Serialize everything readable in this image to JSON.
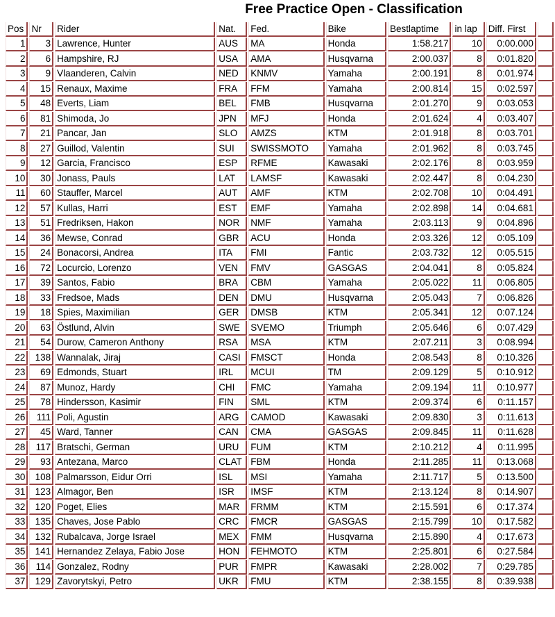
{
  "title": "Free Practice Open - Classification",
  "columns": [
    "Pos",
    "Nr",
    "Rider",
    "Nat.",
    "Fed.",
    "Bike",
    "Bestlaptime",
    "in lap",
    "Diff. First",
    ""
  ],
  "rows": [
    [
      "1",
      "3",
      "Lawrence, Hunter",
      "AUS",
      "MA",
      "Honda",
      "1:58.217",
      "10",
      "0:00.000"
    ],
    [
      "2",
      "6",
      "Hampshire, RJ",
      "USA",
      "AMA",
      "Husqvarna",
      "2:00.037",
      "8",
      "0:01.820"
    ],
    [
      "3",
      "9",
      "Vlaanderen, Calvin",
      "NED",
      "KNMV",
      "Yamaha",
      "2:00.191",
      "8",
      "0:01.974"
    ],
    [
      "4",
      "15",
      "Renaux, Maxime",
      "FRA",
      "FFM",
      "Yamaha",
      "2:00.814",
      "15",
      "0:02.597"
    ],
    [
      "5",
      "48",
      "Everts, Liam",
      "BEL",
      "FMB",
      "Husqvarna",
      "2:01.270",
      "9",
      "0:03.053"
    ],
    [
      "6",
      "81",
      "Shimoda, Jo",
      "JPN",
      "MFJ",
      "Honda",
      "2:01.624",
      "4",
      "0:03.407"
    ],
    [
      "7",
      "21",
      "Pancar, Jan",
      "SLO",
      "AMZS",
      "KTM",
      "2:01.918",
      "8",
      "0:03.701"
    ],
    [
      "8",
      "27",
      "Guillod, Valentin",
      "SUI",
      "SWISSMOTO",
      "Yamaha",
      "2:01.962",
      "8",
      "0:03.745"
    ],
    [
      "9",
      "12",
      "Garcia, Francisco",
      "ESP",
      "RFME",
      "Kawasaki",
      "2:02.176",
      "8",
      "0:03.959"
    ],
    [
      "10",
      "30",
      "Jonass, Pauls",
      "LAT",
      "LAMSF",
      "Kawasaki",
      "2:02.447",
      "8",
      "0:04.230"
    ],
    [
      "11",
      "60",
      "Stauffer, Marcel",
      "AUT",
      "AMF",
      "KTM",
      "2:02.708",
      "10",
      "0:04.491"
    ],
    [
      "12",
      "57",
      "Kullas, Harri",
      "EST",
      "EMF",
      "Yamaha",
      "2:02.898",
      "14",
      "0:04.681"
    ],
    [
      "13",
      "51",
      "Fredriksen, Hakon",
      "NOR",
      "NMF",
      "Yamaha",
      "2:03.113",
      "9",
      "0:04.896"
    ],
    [
      "14",
      "36",
      "Mewse, Conrad",
      "GBR",
      "ACU",
      "Honda",
      "2:03.326",
      "12",
      "0:05.109"
    ],
    [
      "15",
      "24",
      "Bonacorsi, Andrea",
      "ITA",
      "FMI",
      "Fantic",
      "2:03.732",
      "12",
      "0:05.515"
    ],
    [
      "16",
      "72",
      "Locurcio, Lorenzo",
      "VEN",
      "FMV",
      "GASGAS",
      "2:04.041",
      "8",
      "0:05.824"
    ],
    [
      "17",
      "39",
      "Santos, Fabio",
      "BRA",
      "CBM",
      "Yamaha",
      "2:05.022",
      "11",
      "0:06.805"
    ],
    [
      "18",
      "33",
      "Fredsoe, Mads",
      "DEN",
      "DMU",
      "Husqvarna",
      "2:05.043",
      "7",
      "0:06.826"
    ],
    [
      "19",
      "18",
      "Spies, Maximilian",
      "GER",
      "DMSB",
      "KTM",
      "2:05.341",
      "12",
      "0:07.124"
    ],
    [
      "20",
      "63",
      "Östlund, Alvin",
      "SWE",
      "SVEMO",
      "Triumph",
      "2:05.646",
      "6",
      "0:07.429"
    ],
    [
      "21",
      "54",
      "Durow, Cameron Anthony",
      "RSA",
      "MSA",
      "KTM",
      "2:07.211",
      "3",
      "0:08.994"
    ],
    [
      "22",
      "138",
      "Wannalak, Jiraj",
      "CASI",
      "FMSCT",
      "Honda",
      "2:08.543",
      "8",
      "0:10.326"
    ],
    [
      "23",
      "69",
      "Edmonds, Stuart",
      "IRL",
      "MCUI",
      "TM",
      "2:09.129",
      "5",
      "0:10.912"
    ],
    [
      "24",
      "87",
      "Munoz, Hardy",
      "CHI",
      "FMC",
      "Yamaha",
      "2:09.194",
      "11",
      "0:10.977"
    ],
    [
      "25",
      "78",
      "Hindersson, Kasimir",
      "FIN",
      "SML",
      "KTM",
      "2:09.374",
      "6",
      "0:11.157"
    ],
    [
      "26",
      "111",
      "Poli, Agustin",
      "ARG",
      "CAMOD",
      "Kawasaki",
      "2:09.830",
      "3",
      "0:11.613"
    ],
    [
      "27",
      "45",
      "Ward, Tanner",
      "CAN",
      "CMA",
      "GASGAS",
      "2:09.845",
      "11",
      "0:11.628"
    ],
    [
      "28",
      "117",
      "Bratschi, German",
      "URU",
      "FUM",
      "KTM",
      "2:10.212",
      "4",
      "0:11.995"
    ],
    [
      "29",
      "93",
      "Antezana, Marco",
      "CLAT",
      "FBM",
      "Honda",
      "2:11.285",
      "11",
      "0:13.068"
    ],
    [
      "30",
      "108",
      "Palmarsson, Eidur Orri",
      "ISL",
      "MSI",
      "Yamaha",
      "2:11.717",
      "5",
      "0:13.500"
    ],
    [
      "31",
      "123",
      "Almagor, Ben",
      "ISR",
      "IMSF",
      "KTM",
      "2:13.124",
      "8",
      "0:14.907"
    ],
    [
      "32",
      "120",
      "Poget, Elies",
      "MAR",
      "FRMM",
      "KTM",
      "2:15.591",
      "6",
      "0:17.374"
    ],
    [
      "33",
      "135",
      "Chaves, Jose Pablo",
      "CRC",
      "FMCR",
      "GASGAS",
      "2:15.799",
      "10",
      "0:17.582"
    ],
    [
      "34",
      "132",
      "Rubalcava, Jorge Israel",
      "MEX",
      "FMM",
      "Husqvarna",
      "2:15.890",
      "4",
      "0:17.673"
    ],
    [
      "35",
      "141",
      "Hernandez Zelaya, Fabio Jose",
      "HON",
      "FEHMOTO",
      "KTM",
      "2:25.801",
      "6",
      "0:27.584"
    ],
    [
      "36",
      "114",
      "Gonzalez, Rodny",
      "PUR",
      "FMPR",
      "Kawasaki",
      "2:28.002",
      "7",
      "0:29.785"
    ],
    [
      "37",
      "129",
      "Zavorytskyi, Petro",
      "UKR",
      "FMU",
      "KTM",
      "2:38.155",
      "8",
      "0:39.938"
    ]
  ]
}
